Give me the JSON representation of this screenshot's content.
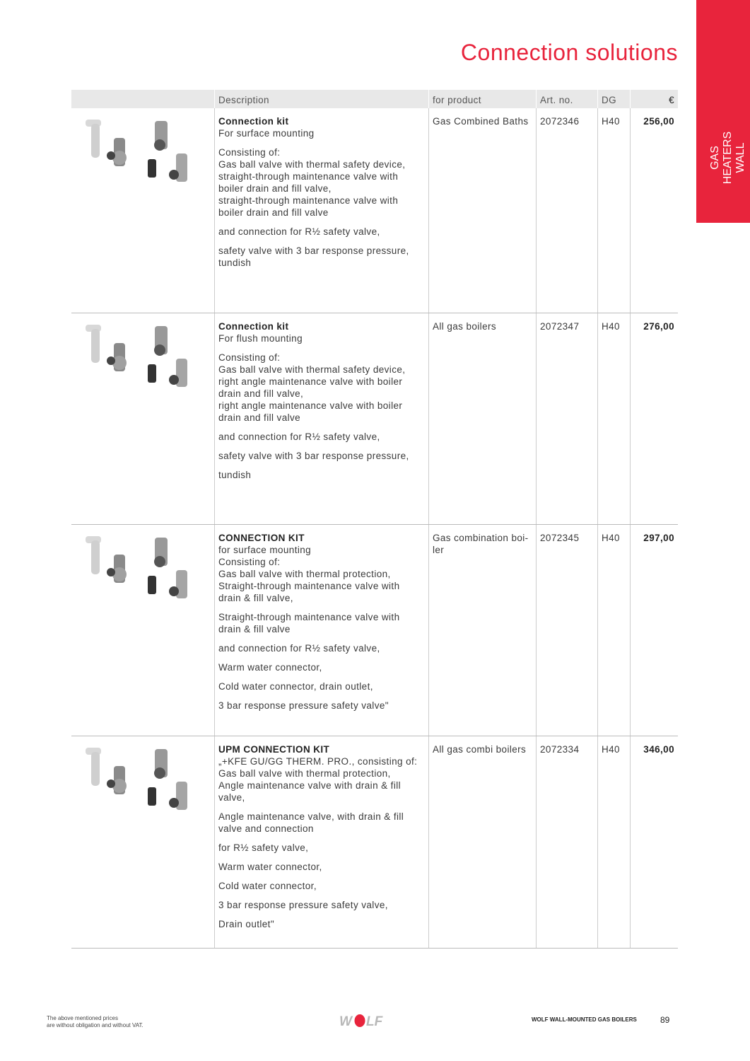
{
  "page_title": "Connection solutions",
  "side_tab": [
    "GAS HEATERS",
    "WALL"
  ],
  "table": {
    "headers": [
      "",
      "Description",
      "for product",
      "Art. no.",
      "DG",
      "€"
    ],
    "rows": [
      {
        "title": "Connection kit",
        "blocks": [
          [
            "For surface mounting"
          ],
          [
            "Consisting of:",
            "Gas ball valve with thermal safety device,",
            "straight-through maintenance valve with",
            "boiler drain and fill valve,",
            "straight-through maintenance valve with",
            "boiler drain and fill valve"
          ],
          [
            "and connection for R½ safety valve,"
          ],
          [
            "safety valve with 3 bar response pressure,",
            "tundish"
          ]
        ],
        "product": "Gas Combined Baths",
        "art": "2072346",
        "dg": "H40",
        "price": "256,00",
        "height": 289
      },
      {
        "title": "Connection kit",
        "blocks": [
          [
            "For flush mounting"
          ],
          [
            "Consisting of:",
            "Gas ball valve with thermal safety device,",
            "right angle maintenance valve with boiler",
            "drain and fill valve,",
            "right angle maintenance valve with boiler",
            "drain and fill valve"
          ],
          [
            "and connection for R½ safety valve,"
          ],
          [
            "safety valve with 3 bar response pressure,"
          ],
          [
            "tundish"
          ]
        ],
        "product": "All gas boilers",
        "art": "2072347",
        "dg": "H40",
        "price": "276,00",
        "height": 299
      },
      {
        "title": "CONNECTION KIT",
        "blocks": [
          [
            "for surface mounting",
            "Consisting of:",
            "Gas ball valve with thermal protection,",
            "Straight-through maintenance valve with",
            "drain & fill valve,"
          ],
          [
            "Straight-through maintenance valve with",
            "drain & fill valve"
          ],
          [
            "and connection for R½ safety valve,"
          ],
          [
            "Warm water connector,"
          ],
          [
            "Cold water connector, drain outlet,"
          ],
          [
            "3 bar response pressure safety valve\""
          ]
        ],
        "product": "Gas combination boi-ler",
        "art": "2072345",
        "dg": "H40",
        "price": "297,00",
        "height": 299
      },
      {
        "title": "UPM CONNECTION KIT",
        "blocks": [
          [
            "„+KFE GU/GG THERM. PRO., consisting of:",
            "Gas ball valve with thermal protection,",
            "Angle maintenance valve with drain & fill",
            "valve,"
          ],
          [
            "Angle maintenance valve, with drain & fill",
            "valve and connection"
          ],
          [
            "for R½ safety valve,"
          ],
          [
            "Warm water connector,"
          ],
          [
            "Cold water connector,"
          ],
          [
            "3 bar response pressure safety valve,"
          ],
          [
            "Drain outlet\""
          ]
        ],
        "product": "All gas combi boilers",
        "art": "2072334",
        "dg": "H40",
        "price": "346,00",
        "height": 300
      }
    ]
  },
  "footer": {
    "note": [
      "The above mentioned prices",
      "are without obligation and without VAT."
    ],
    "logo": "WOLF",
    "brand_line": "WOLF WALL-MOUNTED GAS BOILERS",
    "page_number": "89"
  },
  "colors": {
    "accent": "#e8243c"
  }
}
